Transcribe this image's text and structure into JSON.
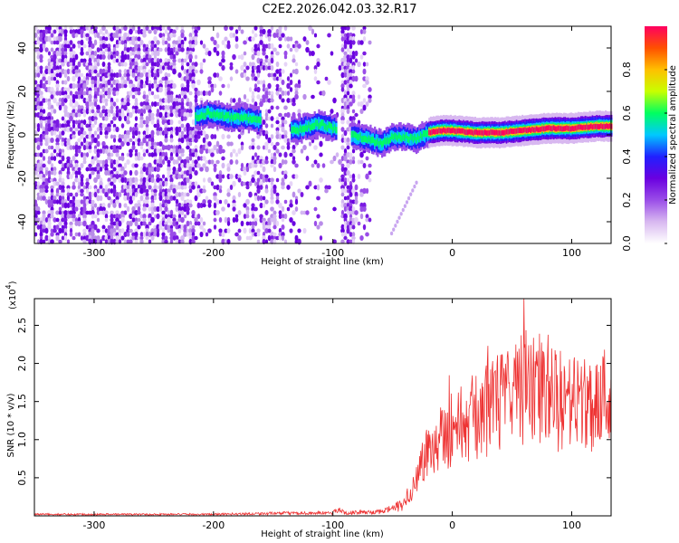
{
  "title": "C2E2.2026.042.03.32.R17",
  "chart_data": [
    {
      "type": "heatmap",
      "title": "C2E2.2026.042.03.32.R17",
      "xlabel": "Height of straight line (km)",
      "ylabel": "Frequency (Hz)",
      "xlim": [
        -350,
        133
      ],
      "ylim": [
        -50,
        50
      ],
      "x_ticks": [
        -300,
        -200,
        -100,
        0,
        100
      ],
      "x_tick_labels": [
        "-300",
        "-200",
        "-100",
        "0",
        "100"
      ],
      "y_ticks": [
        -40,
        -20,
        0,
        20,
        40
      ],
      "y_tick_labels": [
        "-40",
        "-20",
        "0",
        "20",
        "40"
      ],
      "ridge": [
        {
          "x": -215,
          "y": 8
        },
        {
          "x": -205,
          "y": 10
        },
        {
          "x": -195,
          "y": 9
        },
        {
          "x": -185,
          "y": 8
        },
        {
          "x": -175,
          "y": 8
        },
        {
          "x": -165,
          "y": 7
        },
        {
          "x": -130,
          "y": 2
        },
        {
          "x": -120,
          "y": 4
        },
        {
          "x": -110,
          "y": 5
        },
        {
          "x": -100,
          "y": 3
        },
        {
          "x": -80,
          "y": -1
        },
        {
          "x": -70,
          "y": -2
        },
        {
          "x": -60,
          "y": -4
        },
        {
          "x": -50,
          "y": -1
        },
        {
          "x": -40,
          "y": -1
        },
        {
          "x": -30,
          "y": -2
        },
        {
          "x": -20,
          "y": 1
        },
        {
          "x": -10,
          "y": 2
        },
        {
          "x": 0,
          "y": 2
        },
        {
          "x": 20,
          "y": 1
        },
        {
          "x": 40,
          "y": 1
        },
        {
          "x": 60,
          "y": 2
        },
        {
          "x": 80,
          "y": 3
        },
        {
          "x": 100,
          "y": 3
        },
        {
          "x": 120,
          "y": 4
        },
        {
          "x": 133,
          "y": 4
        }
      ],
      "colorbar": {
        "label": "Normalized spectral amplitude",
        "range": [
          0,
          1
        ],
        "ticks": [
          0.0,
          0.2,
          0.4,
          0.6,
          0.8
        ],
        "tick_labels": [
          "0.0",
          "0.2",
          "0.4",
          "0.6",
          "0.8"
        ],
        "colors": [
          "#ffffff",
          "#d8b8f0",
          "#9a4de8",
          "#6a00e0",
          "#2020ff",
          "#00c8ff",
          "#00ff60",
          "#c8ff00",
          "#ffc000",
          "#ff5000",
          "#ff0060"
        ]
      }
    },
    {
      "type": "line",
      "xlabel": "Height of straight line (km)",
      "ylabel": "SNR (10 * v/v)",
      "y_scale_label": "(x10",
      "y_scale_exponent": "4",
      "xlim": [
        -350,
        133
      ],
      "ylim": [
        0,
        2.85
      ],
      "x_ticks": [
        -300,
        -200,
        -100,
        0,
        100
      ],
      "x_tick_labels": [
        "-300",
        "-200",
        "-100",
        "0",
        "100"
      ],
      "y_ticks": [
        0.5,
        1.0,
        1.5,
        2.0,
        2.5
      ],
      "y_tick_labels": [
        "0.5",
        "1.0",
        "1.5",
        "2.0",
        "2.5"
      ],
      "color": "#ee3333",
      "envelope": [
        {
          "x": -350,
          "y": 0.02
        },
        {
          "x": -200,
          "y": 0.02
        },
        {
          "x": -160,
          "y": 0.03
        },
        {
          "x": -100,
          "y": 0.04
        },
        {
          "x": -95,
          "y": 0.08
        },
        {
          "x": -90,
          "y": 0.04
        },
        {
          "x": -60,
          "y": 0.05
        },
        {
          "x": -40,
          "y": 0.15
        },
        {
          "x": -30,
          "y": 0.5
        },
        {
          "x": -20,
          "y": 0.9
        },
        {
          "x": -10,
          "y": 1.05
        },
        {
          "x": 0,
          "y": 1.15
        },
        {
          "x": 20,
          "y": 1.3
        },
        {
          "x": 40,
          "y": 1.5
        },
        {
          "x": 60,
          "y": 1.7
        },
        {
          "x": 80,
          "y": 1.55
        },
        {
          "x": 100,
          "y": 1.45
        },
        {
          "x": 120,
          "y": 1.5
        },
        {
          "x": 133,
          "y": 1.6
        }
      ],
      "peak": {
        "x": 60,
        "y": 2.85
      }
    }
  ]
}
